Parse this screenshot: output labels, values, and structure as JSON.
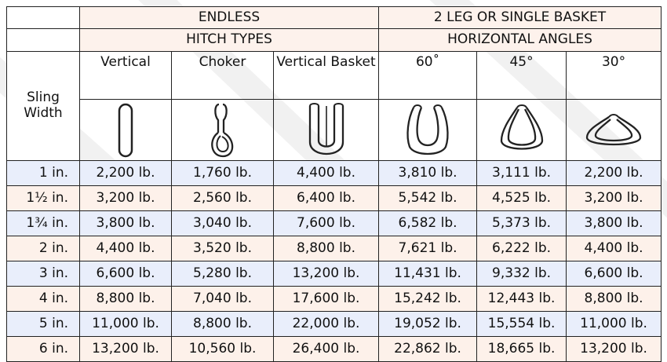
{
  "header": {
    "endless": "ENDLESS",
    "basket": "2 LEG OR SINGLE BASKET",
    "hitch_types": "HITCH TYPES",
    "horizontal_angles": "HORIZONTAL ANGLES",
    "sling_width": "Sling Width",
    "columns": [
      "Vertical",
      "Choker",
      "Vertical Basket",
      "60˚",
      "45°",
      "30°"
    ]
  },
  "icons": [
    "vertical-sling-icon",
    "choker-sling-icon",
    "vertical-basket-sling-icon",
    "basket-60-sling-icon",
    "basket-45-sling-icon",
    "basket-30-sling-icon"
  ],
  "colors": {
    "row_blue": "#e9eefb",
    "row_pink": "#fdf1ea",
    "header_bg": "#fdf2ec",
    "border": "#222222"
  },
  "rows": [
    {
      "width": "1 in.",
      "values": [
        "2,200 lb.",
        "1,760 lb.",
        "4,400 lb.",
        "3,810 lb.",
        "3,111 lb.",
        "2,200 lb."
      ]
    },
    {
      "width": "1½ in.",
      "values": [
        "3,200 lb.",
        "2,560 lb.",
        "6,400 lb.",
        "5,542 lb.",
        "4,525 lb.",
        "3,200 lb."
      ]
    },
    {
      "width": "1¾ in.",
      "values": [
        "3,800 lb.",
        "3,040 lb.",
        "7,600 lb.",
        "6,582 lb.",
        "5,373 lb.",
        "3,800 lb."
      ]
    },
    {
      "width": "2 in.",
      "values": [
        "4,400 lb.",
        "3,520 lb.",
        "8,800 lb.",
        "7,621 lb.",
        "6,222 lb.",
        "4,400 lb."
      ]
    },
    {
      "width": "3 in.",
      "values": [
        "6,600 lb.",
        "5,280 lb.",
        "13,200 lb.",
        "11,431 lb.",
        "9,332 lb.",
        "6,600 lb."
      ]
    },
    {
      "width": "4 in.",
      "values": [
        "8,800 lb.",
        "7,040 lb.",
        "17,600 lb.",
        "15,242 lb.",
        "12,443 lb.",
        "8,800 lb."
      ]
    },
    {
      "width": "5 in.",
      "values": [
        "11,000 lb.",
        "8,800 lb.",
        "22,000 lb.",
        "19,052 lb.",
        "15,554 lb.",
        "11,000 lb."
      ]
    },
    {
      "width": "6 in.",
      "values": [
        "13,200 lb.",
        "10,560 lb.",
        "26,400 lb.",
        "22,862 lb.",
        "18,665 lb.",
        "13,200 lb."
      ]
    }
  ]
}
